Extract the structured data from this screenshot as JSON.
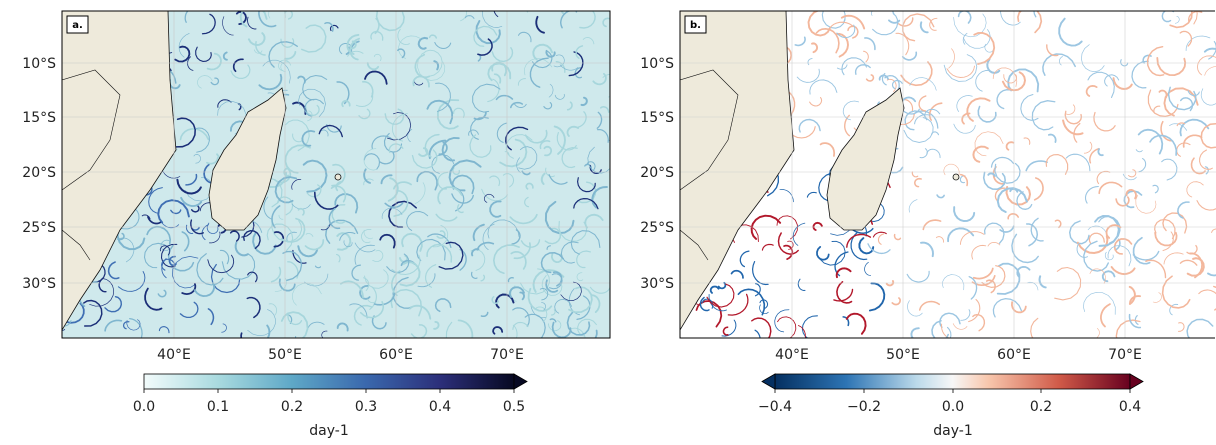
{
  "panels": [
    {
      "id": "a",
      "tag": "a.",
      "lat_labels": [
        "10°S",
        "15°S",
        "20°S",
        "25°S",
        "30°S"
      ],
      "lon_labels": [
        "40°E",
        "50°E",
        "60°E",
        "70°E"
      ],
      "colorbar": {
        "ticks": [
          "0.0",
          "0.1",
          "0.2",
          "0.3",
          "0.4",
          "0.5"
        ],
        "unit": "day-1",
        "colormap": "sequential-blue",
        "extend": "max",
        "range": [
          0.0,
          0.5
        ]
      }
    },
    {
      "id": "b",
      "tag": "b.",
      "lat_labels": [
        "10°S",
        "15°S",
        "20°S",
        "25°S",
        "30°S"
      ],
      "lon_labels": [
        "40°E",
        "50°E",
        "60°E",
        "70°E"
      ],
      "colorbar": {
        "ticks": [
          "−0.4",
          "−0.2",
          "0.0",
          "0.2",
          "0.4"
        ],
        "unit": "day-1",
        "colormap": "diverging-red-blue",
        "extend": "both",
        "range": [
          -0.4,
          0.4
        ]
      }
    }
  ],
  "colors": {
    "land": "#eeeadb",
    "coast": "#111111",
    "grid": "#c8c8c8",
    "blue_light": "#d8eef0",
    "blue_mid": "#7fb6cf",
    "blue_dark": "#1b2f78",
    "red": "#b2182b",
    "diverging_blue": "#2166ac"
  }
}
